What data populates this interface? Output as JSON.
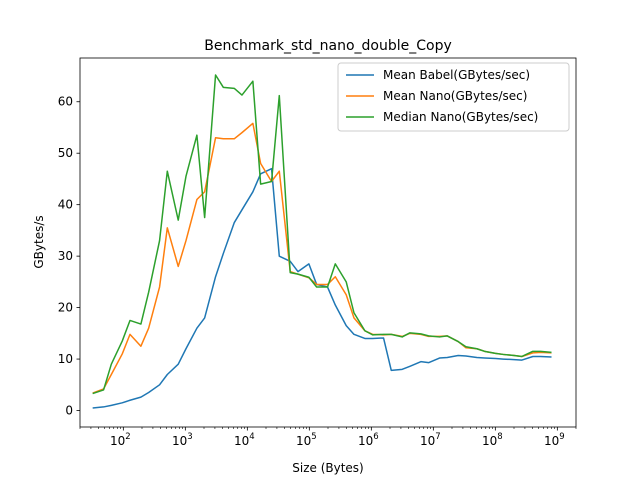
{
  "chart_data": {
    "type": "line",
    "title": "Benchmark_std_nano_double_Copy",
    "xlabel": "Size (Bytes)",
    "ylabel": "GBytes/s",
    "xscale": "log",
    "xlim": [
      20,
      2000000000
    ],
    "ylim": [
      -3.2,
      68.5
    ],
    "yticks": [
      0,
      10,
      20,
      30,
      40,
      50,
      60
    ],
    "xticks": [
      100,
      1000,
      10000,
      100000,
      1000000,
      10000000,
      100000000,
      1000000000
    ],
    "xtick_labels": [
      {
        "base": "10",
        "exp": "2"
      },
      {
        "base": "10",
        "exp": "3"
      },
      {
        "base": "10",
        "exp": "4"
      },
      {
        "base": "10",
        "exp": "5"
      },
      {
        "base": "10",
        "exp": "6"
      },
      {
        "base": "10",
        "exp": "7"
      },
      {
        "base": "10",
        "exp": "8"
      },
      {
        "base": "10",
        "exp": "9"
      }
    ],
    "grid": false,
    "legend": "top-right",
    "x": [
      32,
      48,
      64,
      96,
      128,
      192,
      256,
      384,
      512,
      768,
      1024,
      1536,
      2048,
      3072,
      4096,
      6144,
      8192,
      12288,
      16384,
      24576,
      32768,
      49152,
      65536,
      98304,
      131072,
      196608,
      262144,
      393216,
      524288,
      786432,
      1048576,
      1572864,
      2097152,
      3145728,
      4194304,
      6291456,
      8388608,
      12582912,
      16777216,
      25165824,
      33554432,
      50331648,
      67108864,
      100663296,
      134217728,
      201326592,
      268435456,
      402653184,
      536870912,
      805306368
    ],
    "series": [
      {
        "name": "Mean Babel(GBytes/sec)",
        "color": "#1f77b4",
        "values": [
          0.5,
          0.7,
          1.0,
          1.5,
          2.0,
          2.6,
          3.5,
          5.0,
          7.0,
          9.0,
          12.0,
          16.0,
          18.0,
          26.0,
          30.5,
          36.5,
          39.0,
          42.5,
          46.0,
          47.0,
          30.0,
          29.0,
          27.0,
          28.5,
          24.5,
          24.0,
          20.5,
          16.5,
          14.8,
          14.0,
          14.0,
          14.1,
          7.8,
          8.0,
          8.6,
          9.5,
          9.3,
          10.2,
          10.3,
          10.7,
          10.6,
          10.3,
          10.2,
          10.1,
          10.0,
          9.9,
          9.8,
          10.5,
          10.5,
          10.4
        ]
      },
      {
        "name": "Mean Nano(GBytes/sec)",
        "color": "#ff7f0e",
        "values": [
          3.4,
          4.2,
          7.0,
          11.0,
          14.8,
          12.5,
          16.0,
          24.0,
          35.5,
          28.0,
          33.0,
          41.0,
          42.5,
          53.0,
          52.8,
          52.8,
          54.0,
          55.8,
          48.0,
          44.5,
          46.5,
          27.0,
          26.5,
          25.8,
          24.5,
          24.5,
          26.0,
          22.5,
          18.0,
          15.5,
          14.8,
          14.7,
          14.8,
          14.4,
          15.0,
          14.8,
          14.4,
          14.4,
          14.5,
          13.4,
          12.2,
          12.0,
          11.5,
          11.1,
          10.9,
          10.7,
          10.5,
          11.2,
          11.3,
          11.2
        ]
      },
      {
        "name": "Median Nano(GBytes/sec)",
        "color": "#2ca02c",
        "values": [
          3.3,
          4.0,
          9.0,
          13.5,
          17.5,
          16.8,
          23.0,
          33.0,
          46.5,
          37.0,
          45.5,
          53.5,
          37.5,
          65.2,
          62.8,
          62.6,
          61.3,
          64.0,
          44.0,
          44.5,
          61.2,
          26.8,
          26.5,
          25.9,
          24.0,
          24.0,
          28.5,
          25.0,
          19.0,
          15.5,
          14.7,
          14.8,
          14.8,
          14.3,
          15.1,
          14.9,
          14.5,
          14.3,
          14.5,
          13.4,
          12.4,
          12.0,
          11.5,
          11.1,
          10.9,
          10.7,
          10.5,
          11.5,
          11.5,
          11.3
        ]
      }
    ]
  }
}
